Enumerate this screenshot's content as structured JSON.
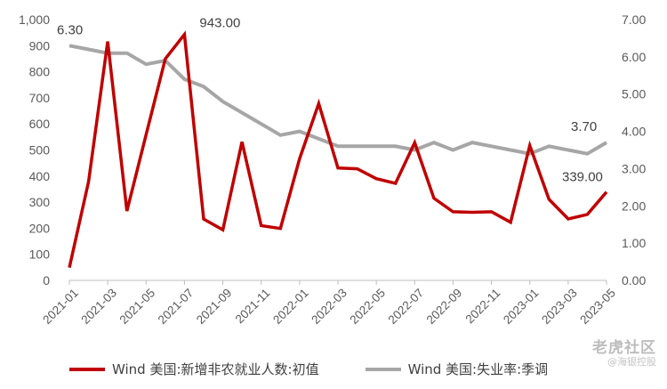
{
  "chart_data": {
    "type": "line",
    "categories": [
      "2021-01",
      "2021-02",
      "2021-03",
      "2021-04",
      "2021-05",
      "2021-06",
      "2021-07",
      "2021-08",
      "2021-09",
      "2021-10",
      "2021-11",
      "2021-12",
      "2022-01",
      "2022-02",
      "2022-03",
      "2022-04",
      "2022-05",
      "2022-06",
      "2022-07",
      "2022-08",
      "2022-09",
      "2022-10",
      "2022-11",
      "2022-12",
      "2023-01",
      "2023-02",
      "2023-03",
      "2023-04",
      "2023-05"
    ],
    "x_tick_labels": [
      "2021-01",
      "2021-03",
      "2021-05",
      "2021-07",
      "2021-09",
      "2021-11",
      "2022-01",
      "2022-03",
      "2022-05",
      "2022-07",
      "2022-09",
      "2022-11",
      "2023-01",
      "2023-03",
      "2023-05"
    ],
    "series": [
      {
        "name": "Wind 美国:新增非农就业人数:初值",
        "axis": "left",
        "color": "#c00000",
        "values": [
          49,
          379,
          916,
          266,
          559,
          850,
          943,
          235,
          194,
          531,
          210,
          199,
          467,
          678,
          431,
          428,
          390,
          372,
          528,
          315,
          263,
          261,
          263,
          223,
          517,
          311,
          236,
          253,
          339
        ]
      },
      {
        "name": "Wind 美国:失业率:季调",
        "axis": "right",
        "color": "#a6a6a6",
        "values": [
          6.3,
          6.2,
          6.1,
          6.1,
          5.8,
          5.9,
          5.4,
          5.2,
          4.8,
          4.5,
          4.2,
          3.9,
          4.0,
          3.8,
          3.6,
          3.6,
          3.6,
          3.6,
          3.5,
          3.7,
          3.5,
          3.7,
          3.6,
          3.5,
          3.4,
          3.6,
          3.5,
          3.4,
          3.7
        ]
      }
    ],
    "y_left": {
      "ylim": [
        0,
        1000
      ],
      "ticks": [
        "0",
        "100",
        "200",
        "300",
        "400",
        "500",
        "600",
        "700",
        "800",
        "900",
        "1,000"
      ]
    },
    "y_right": {
      "ylim": [
        0,
        7
      ],
      "ticks": [
        "0.00",
        "1.00",
        "2.00",
        "3.00",
        "4.00",
        "5.00",
        "6.00",
        "7.00"
      ]
    },
    "annotations": [
      {
        "text": "6.30",
        "series": 1,
        "index": 0
      },
      {
        "text": "943.00",
        "series": 0,
        "index": 6
      },
      {
        "text": "3.70",
        "series": 1,
        "index": 28
      },
      {
        "text": "339.00",
        "series": 0,
        "index": 28
      }
    ],
    "legend_position": "bottom",
    "grid": false
  },
  "watermark": {
    "main": "老虎社区",
    "sub": "@海银控股"
  },
  "colors": {
    "series_primary": "#c00000",
    "series_secondary": "#a6a6a6",
    "axis": "#bfbfbf"
  }
}
